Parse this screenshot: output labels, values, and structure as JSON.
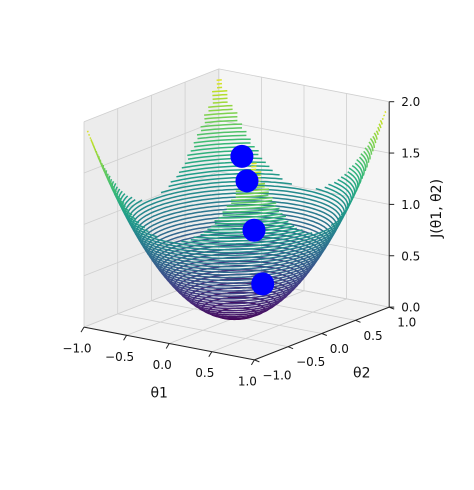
{
  "chart_data": {
    "type": "surface-contour-3d",
    "function": "theta1^2 + theta2^2",
    "xlabel": "θ1",
    "ylabel": "θ2",
    "zlabel": "J(θ1, θ2)",
    "xlim": [
      -1.0,
      1.0
    ],
    "ylim": [
      -1.0,
      1.0
    ],
    "zlim": [
      0.0,
      2.0
    ],
    "x_ticks": [
      "−1.0",
      "−0.5",
      "0.0",
      "0.5",
      "1.0"
    ],
    "x_tick_values": [
      -1.0,
      -0.5,
      0.0,
      0.5,
      1.0
    ],
    "y_ticks": [
      "−1.0",
      "−0.5",
      "0.0",
      "0.5",
      "1.0"
    ],
    "y_tick_values": [
      -1.0,
      -0.5,
      0.0,
      0.5,
      1.0
    ],
    "z_ticks": [
      "0.0",
      "0.5",
      "1.0",
      "1.5",
      "2.0"
    ],
    "z_tick_values": [
      0.0,
      0.5,
      1.0,
      1.5,
      2.0
    ],
    "contour_levels": 60,
    "colormap": "viridis",
    "grid": true,
    "points": [
      {
        "theta1": -0.65,
        "theta2": 0.9,
        "J": 1.23
      },
      {
        "theta1": -0.55,
        "theta2": 0.85,
        "J": 1.02
      },
      {
        "theta1": -0.35,
        "theta2": 0.7,
        "J": 0.61
      },
      {
        "theta1": -0.05,
        "theta2": 0.45,
        "J": 0.2
      }
    ],
    "point_color": "#0000ff"
  }
}
